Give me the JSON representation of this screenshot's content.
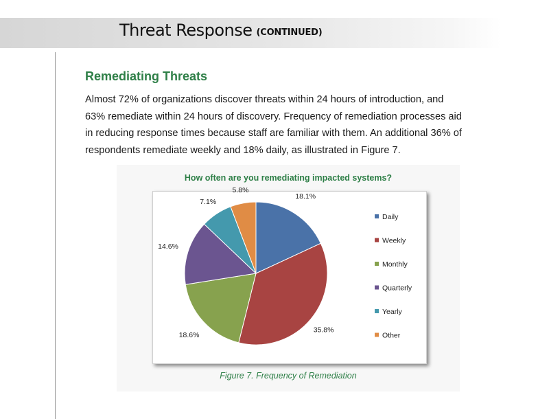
{
  "header": {
    "title": "Threat Response",
    "subtitle": "(CONTINUED)"
  },
  "section": {
    "heading": "Remediating Threats",
    "paragraph_lines": [
      "Almost 72% of organizations discover threats within 24 hours of introduction, and",
      "63% remediate within 24 hours of discovery. Frequency of remediation processes aid",
      "in reducing response times because staff are familiar with them. An additional 36% of",
      "respondents remediate weekly and 18% daily, as illustrated in Figure 7."
    ]
  },
  "figure": {
    "caption": "Figure 7. Frequency of Remediation"
  },
  "chart_data": {
    "type": "pie",
    "title": "How often are you remediating impacted systems?",
    "labels": [
      "Daily",
      "Weekly",
      "Monthly",
      "Quarterly",
      "Yearly",
      "Other"
    ],
    "values": [
      18.1,
      35.8,
      18.6,
      14.6,
      7.1,
      5.8
    ],
    "value_labels": [
      "18.1%",
      "35.8%",
      "18.6%",
      "14.6%",
      "7.1%",
      "5.8%"
    ],
    "colors": [
      "#4a72a8",
      "#a84442",
      "#87a24e",
      "#6b5590",
      "#4499ad",
      "#e08c45"
    ],
    "legend_position": "right",
    "start": "12 o'clock, clockwise"
  }
}
